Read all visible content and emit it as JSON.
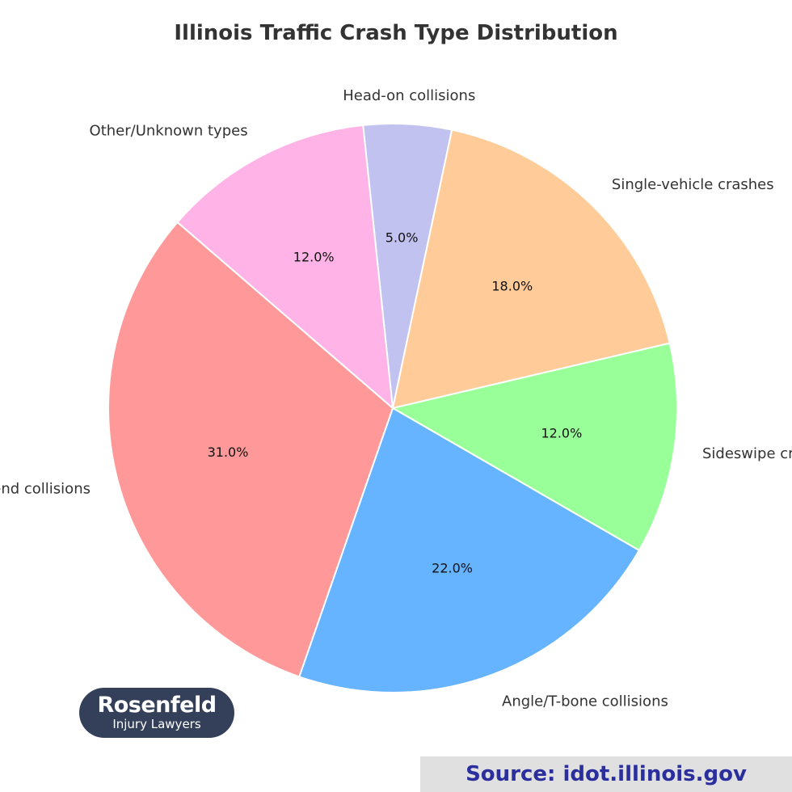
{
  "chart_data": {
    "type": "pie",
    "title": "Illinois Traffic Crash Type Distribution",
    "start_angle_deg": 96,
    "direction": "clockwise",
    "slices": [
      {
        "label": "Head-on collisions",
        "value": 5.0,
        "pct_label": "5.0%",
        "color": "#c2c2f0"
      },
      {
        "label": "Single-vehicle crashes",
        "value": 18.0,
        "pct_label": "18.0%",
        "color": "#ffcc99"
      },
      {
        "label": "Sideswipe crashes",
        "value": 12.0,
        "pct_label": "12.0%",
        "color": "#99ff99"
      },
      {
        "label": "Angle/T-bone collisions",
        "value": 22.0,
        "pct_label": "22.0%",
        "color": "#66b3ff"
      },
      {
        "label": "Rear-end collisions",
        "value": 31.0,
        "pct_label": "31.0%",
        "color": "#ff9999"
      },
      {
        "label": "Other/Unknown types",
        "value": 12.0,
        "pct_label": "12.0%",
        "color": "#ffb3e6"
      }
    ]
  },
  "logo": {
    "name": "Rosenfeld",
    "subtitle": "Injury Lawyers"
  },
  "source": {
    "text": "Source: idot.illinois.gov"
  }
}
